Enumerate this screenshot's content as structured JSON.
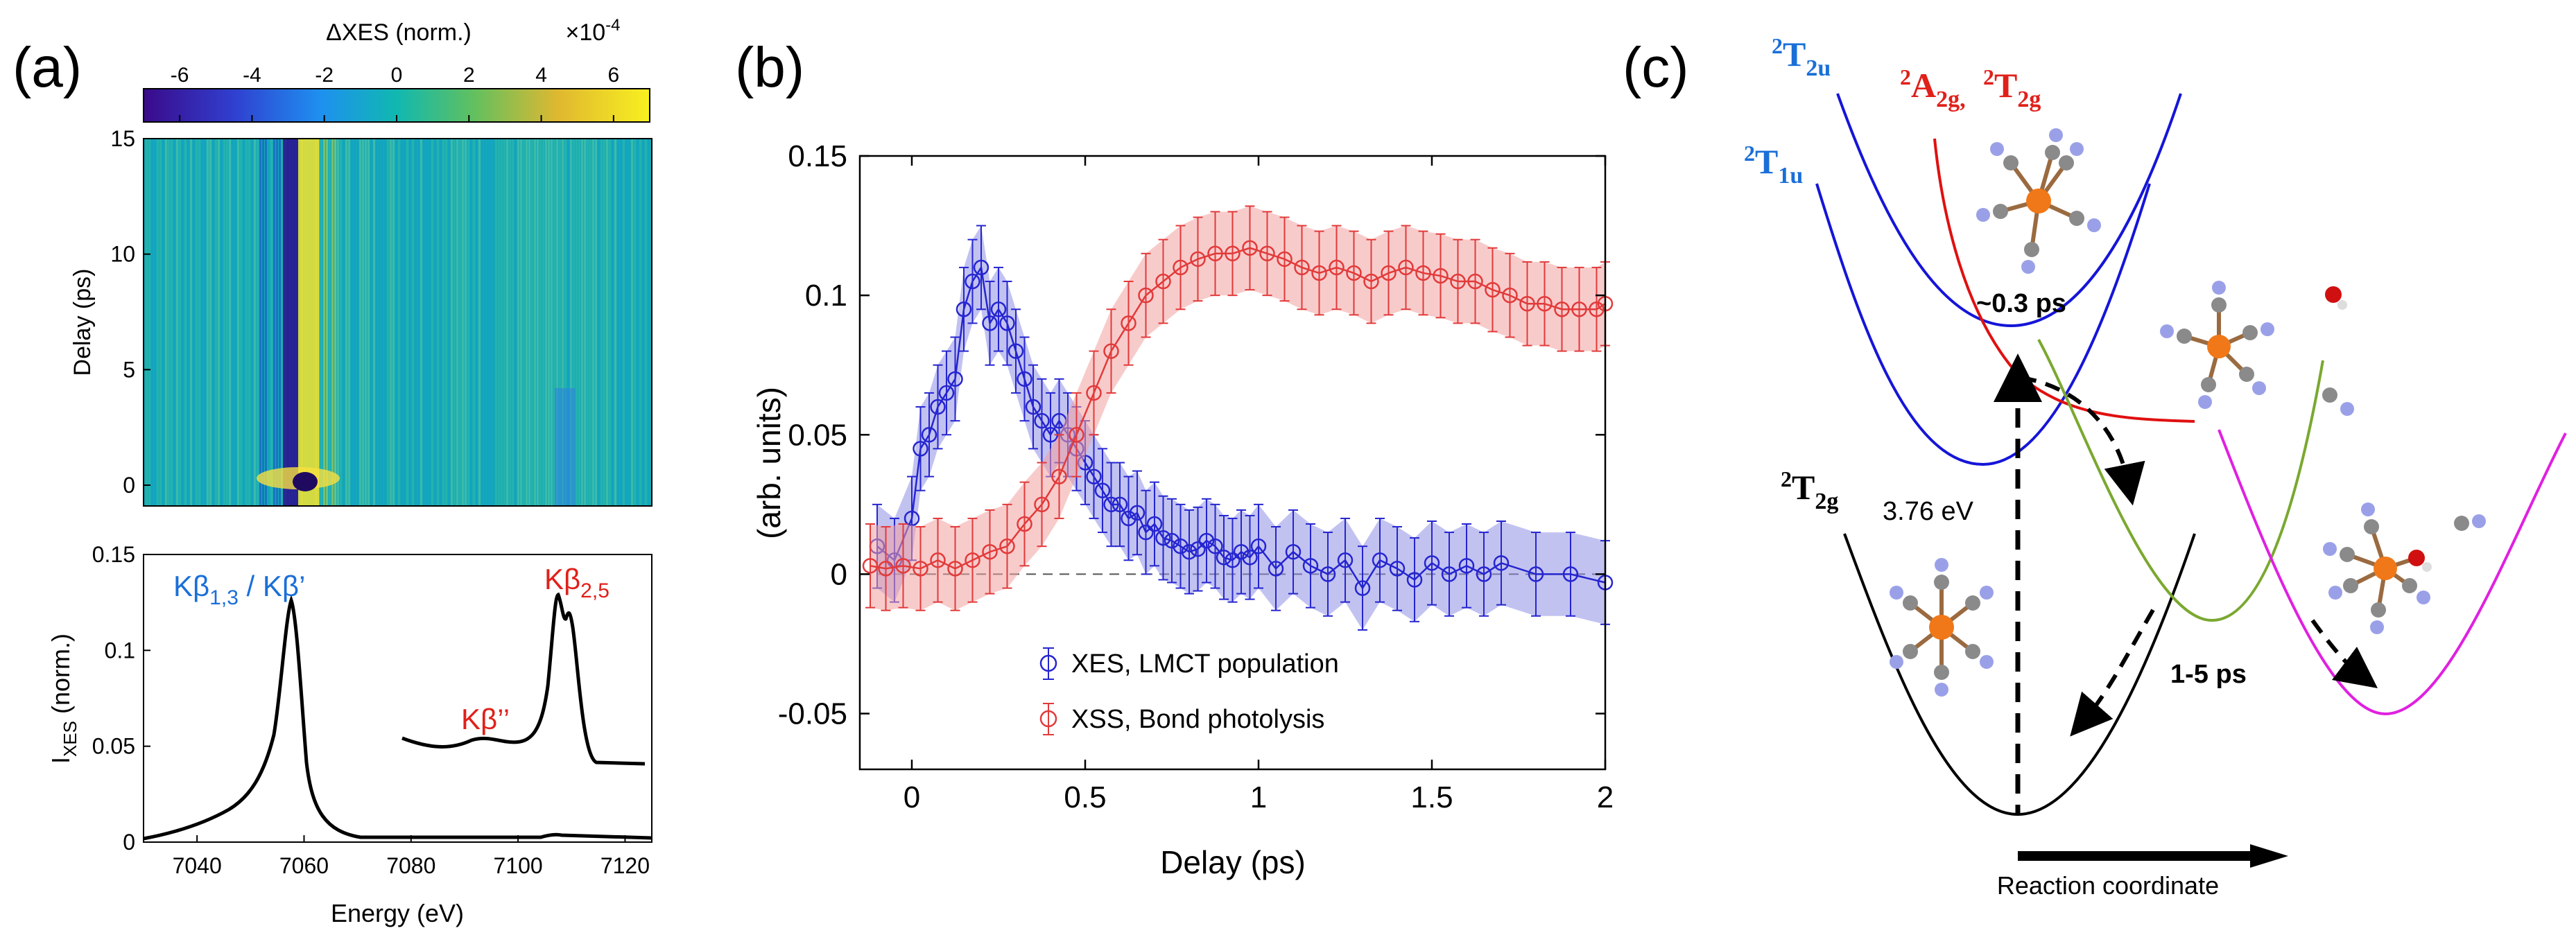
{
  "panel_labels": {
    "a": "(a)",
    "b": "(b)",
    "c": "(c)"
  },
  "colors": {
    "blue": "#2525d0",
    "red": "#e23a3a",
    "red_fill": "#f2a0a0",
    "blue_fill": "#8f8fe6",
    "label_blue": "#1a6fd8",
    "label_red": "#e0201a",
    "green": "#7aa830",
    "magenta": "#e020e0"
  },
  "panel_a": {
    "colorbar": {
      "title": "ΔXES (norm.)",
      "scale_base": "×10",
      "scale_exp": "-4",
      "ticks": [
        "-6",
        "-4",
        "-2",
        "0",
        "2",
        "4",
        "6"
      ]
    },
    "heatmap": {
      "ylabel": "Delay (ps)",
      "yticks": [
        "15",
        "10",
        "5",
        "0"
      ]
    },
    "spectrum": {
      "ylabel_main": "I",
      "ylabel_sub": "XES",
      "ylabel_rest": " (norm.)",
      "xlabel": "Energy (eV)",
      "xticks": [
        "7040",
        "7060",
        "7080",
        "7100",
        "7120"
      ],
      "yticks": [
        "0.15",
        "0.1",
        "0.05",
        "0"
      ],
      "peak1_main": "Kβ",
      "peak1_sub": "1,3",
      "peak1_rest": " / Kβ’",
      "peak2_main": "Kβ",
      "peak2_sub": "2,5",
      "peak3": "Kβ’’"
    }
  },
  "chart_data": {
    "type": "line",
    "title": "",
    "xlabel": "Delay (ps)",
    "ylabel": "(arb. units)",
    "xlim": [
      -0.15,
      2.0
    ],
    "ylim": [
      -0.07,
      0.15
    ],
    "xticks": [
      "0",
      "0.5",
      "1",
      "1.5",
      "2"
    ],
    "yticks": [
      "0.15",
      "0.1",
      "0.05",
      "0",
      "-0.05"
    ],
    "legend_position": "bottom-center",
    "series": [
      {
        "name": "XES, LMCT population",
        "color": "#2525d0",
        "x": [
          -0.1,
          -0.05,
          0,
          0.025,
          0.05,
          0.075,
          0.1,
          0.125,
          0.15,
          0.175,
          0.2,
          0.225,
          0.25,
          0.275,
          0.3,
          0.325,
          0.35,
          0.375,
          0.4,
          0.425,
          0.45,
          0.475,
          0.5,
          0.525,
          0.55,
          0.575,
          0.6,
          0.625,
          0.65,
          0.675,
          0.7,
          0.725,
          0.75,
          0.775,
          0.8,
          0.825,
          0.85,
          0.875,
          0.9,
          0.925,
          0.95,
          0.975,
          1.0,
          1.05,
          1.1,
          1.15,
          1.2,
          1.25,
          1.3,
          1.35,
          1.4,
          1.45,
          1.5,
          1.55,
          1.6,
          1.65,
          1.7,
          1.8,
          1.9,
          2.0
        ],
        "y": [
          0.01,
          0.005,
          0.02,
          0.045,
          0.05,
          0.06,
          0.065,
          0.07,
          0.095,
          0.105,
          0.11,
          0.09,
          0.095,
          0.09,
          0.08,
          0.07,
          0.06,
          0.055,
          0.05,
          0.055,
          0.05,
          0.045,
          0.04,
          0.035,
          0.03,
          0.025,
          0.025,
          0.02,
          0.022,
          0.015,
          0.018,
          0.013,
          0.012,
          0.01,
          0.008,
          0.009,
          0.012,
          0.01,
          0.006,
          0.005,
          0.008,
          0.006,
          0.01,
          0.002,
          0.008,
          0.003,
          0.0,
          0.005,
          -0.005,
          0.005,
          0.002,
          -0.002,
          0.004,
          0.0,
          0.003,
          0.0,
          0.004,
          0.0,
          0.0,
          -0.003
        ],
        "err": 0.015
      },
      {
        "name": "XSS, Bond photolysis",
        "color": "#e23a3a",
        "x": [
          -0.12,
          -0.075,
          -0.025,
          0.025,
          0.075,
          0.125,
          0.175,
          0.225,
          0.275,
          0.325,
          0.375,
          0.425,
          0.475,
          0.525,
          0.575,
          0.625,
          0.675,
          0.725,
          0.775,
          0.825,
          0.875,
          0.925,
          0.975,
          1.025,
          1.075,
          1.125,
          1.175,
          1.225,
          1.275,
          1.325,
          1.375,
          1.425,
          1.475,
          1.525,
          1.575,
          1.625,
          1.675,
          1.725,
          1.775,
          1.825,
          1.875,
          1.925,
          1.975,
          2.0
        ],
        "y": [
          0.003,
          0.002,
          0.003,
          0.002,
          0.005,
          0.002,
          0.005,
          0.008,
          0.01,
          0.018,
          0.025,
          0.035,
          0.05,
          0.065,
          0.08,
          0.09,
          0.1,
          0.105,
          0.11,
          0.113,
          0.115,
          0.115,
          0.117,
          0.115,
          0.113,
          0.11,
          0.108,
          0.11,
          0.108,
          0.105,
          0.108,
          0.11,
          0.108,
          0.107,
          0.105,
          0.105,
          0.102,
          0.1,
          0.097,
          0.097,
          0.095,
          0.095,
          0.095,
          0.097
        ],
        "err": 0.015
      }
    ]
  },
  "panel_c": {
    "state_T2u_main": "T",
    "state_T2u_sub": "2u",
    "state_T1u_main": "T",
    "state_T1u_sub": "1u",
    "state_A2g_main": "A",
    "state_A2g_sub": "2g,",
    "state_T2g_red_main": "T",
    "state_T2g_red_sub": "2g",
    "state_T2g_black_main": "T",
    "state_T2g_black_sub": "2g",
    "superscript": "2",
    "time1": "~0.3 ps",
    "energy": "3.76 eV",
    "time2": "1-5 ps",
    "axis_label": "Reaction coordinate"
  }
}
